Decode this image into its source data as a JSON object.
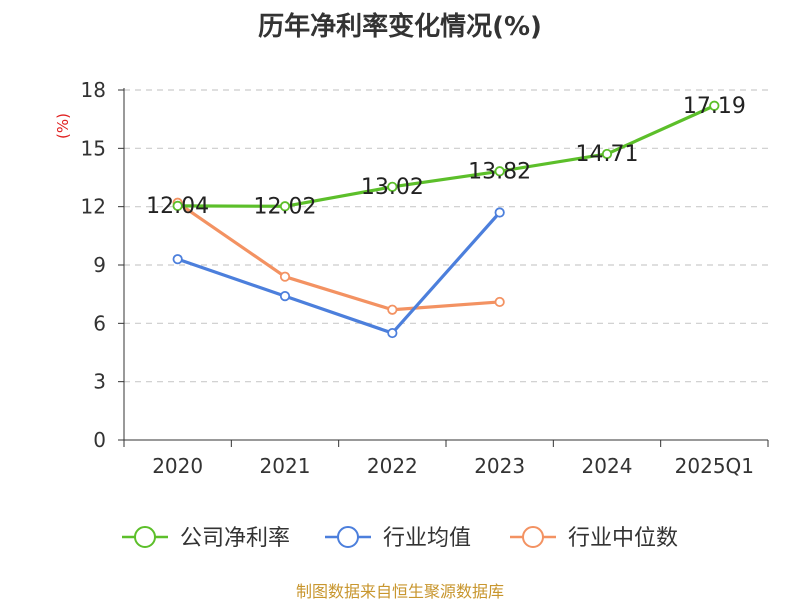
{
  "title": "历年净利率变化情况(%)",
  "source_note": "制图数据来自恒生聚源数据库",
  "colors": {
    "company": "#5cbf2a",
    "industry_mean": "#4c7fdc",
    "industry_median": "#f39262",
    "grid": "#cccccc",
    "axis": "#333333",
    "ylabel": "#e02020",
    "source": "#c8962e",
    "title": "#333333"
  },
  "chart_data": {
    "type": "line",
    "title": "历年净利率变化情况(%)",
    "xlabel": "",
    "ylabel": "(%)",
    "categories": [
      "2020",
      "2021",
      "2022",
      "2023",
      "2024",
      "2025Q1"
    ],
    "ylim": [
      0,
      18
    ],
    "yticks": [
      0,
      3,
      6,
      9,
      12,
      15,
      18
    ],
    "grid": true,
    "grid_style": "dashed-horizontal",
    "legend_position": "bottom",
    "series": [
      {
        "name": "公司净利率",
        "color": "#5cbf2a",
        "values": [
          12.04,
          12.02,
          13.02,
          13.82,
          14.71,
          17.19
        ],
        "labels": [
          "12.04",
          "12.02",
          "13.02",
          "13.82",
          "14.71",
          "17.19"
        ]
      },
      {
        "name": "行业均值",
        "color": "#4c7fdc",
        "values": [
          9.3,
          7.4,
          5.5,
          11.7,
          null,
          null
        ]
      },
      {
        "name": "行业中位数",
        "color": "#f39262",
        "values": [
          12.2,
          8.4,
          6.7,
          7.1,
          null,
          null
        ]
      }
    ]
  }
}
